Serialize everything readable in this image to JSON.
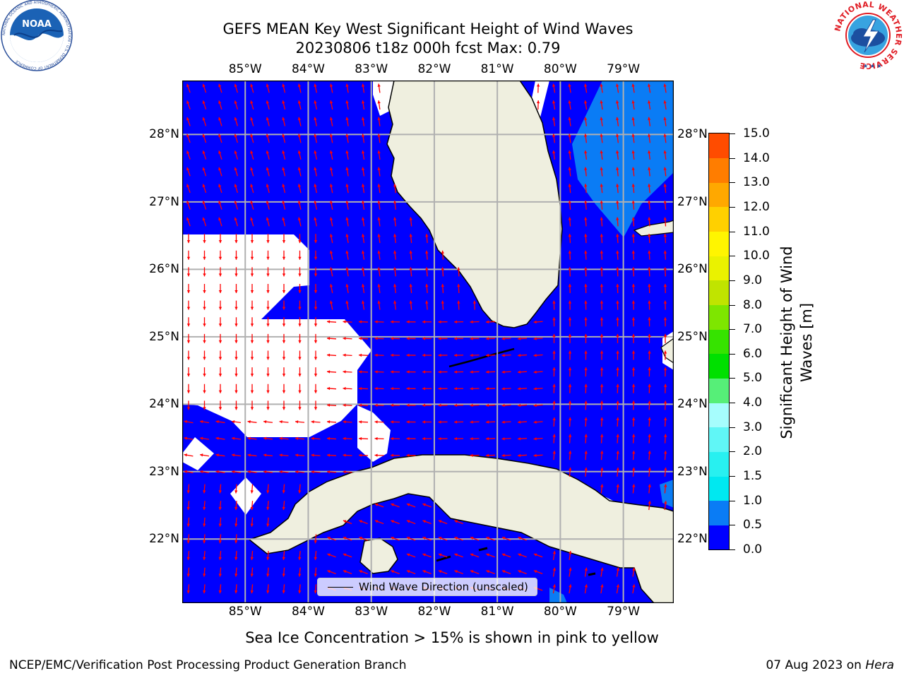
{
  "title_line1": "GEFS MEAN Key West Significant Height of Wind Waves",
  "title_line2": "20230806 t18z 000h fcst   Max: 0.79",
  "map": {
    "lon_labels": [
      "85°W",
      "84°W",
      "83°W",
      "82°W",
      "81°W",
      "80°W",
      "79°W"
    ],
    "lat_labels": [
      "28°N",
      "27°N",
      "26°N",
      "25°N",
      "24°N",
      "23°N",
      "22°N"
    ],
    "lon_range": [
      -86.0,
      -78.2
    ],
    "lat_range": [
      21.05,
      28.8
    ],
    "land_color": "#efefdf",
    "water_color": "#0000ff",
    "arrow_color": "#ff0000",
    "grid": true
  },
  "colorbar": {
    "label": "Significant Height of Wind Waves [m]",
    "label_line1": "Significant Height of Wind",
    "label_line2": "Waves [m]",
    "ticks": [
      "0.0",
      "0.5",
      "1.0",
      "1.5",
      "2.0",
      "3.0",
      "4.0",
      "5.0",
      "6.0",
      "7.0",
      "8.0",
      "9.0",
      "10.0",
      "11.0",
      "12.0",
      "13.0",
      "14.0",
      "15.0"
    ],
    "colors": [
      "#0000ff",
      "#0a7cf5",
      "#00e8f0",
      "#28f0f0",
      "#60f6f6",
      "#a6fdfd",
      "#56ef78",
      "#00e000",
      "#36e300",
      "#7ee600",
      "#c0e400",
      "#eaf200",
      "#fff500",
      "#ffd000",
      "#ffa800",
      "#ff7d00",
      "#ff4c00",
      "#ff1a00"
    ]
  },
  "legend": {
    "label": "Wind Wave Direction (unscaled)"
  },
  "footer": {
    "sea_ice_note": "Sea Ice Concentration > 15% is shown in pink to yellow",
    "left": "NCEP/EMC/Verification Post Processing Product Generation Branch",
    "date": "07 Aug 2023 on ",
    "host": "Hera"
  },
  "logos": {
    "noaa_text": "NOAA",
    "noaa_ring": "NATIONAL OCEANIC AND ATMOSPHERIC ADMINISTRATION · U.S. DEPARTMENT OF COMMERCE",
    "nws_ring": "NATIONAL WEATHER SERVICE"
  }
}
